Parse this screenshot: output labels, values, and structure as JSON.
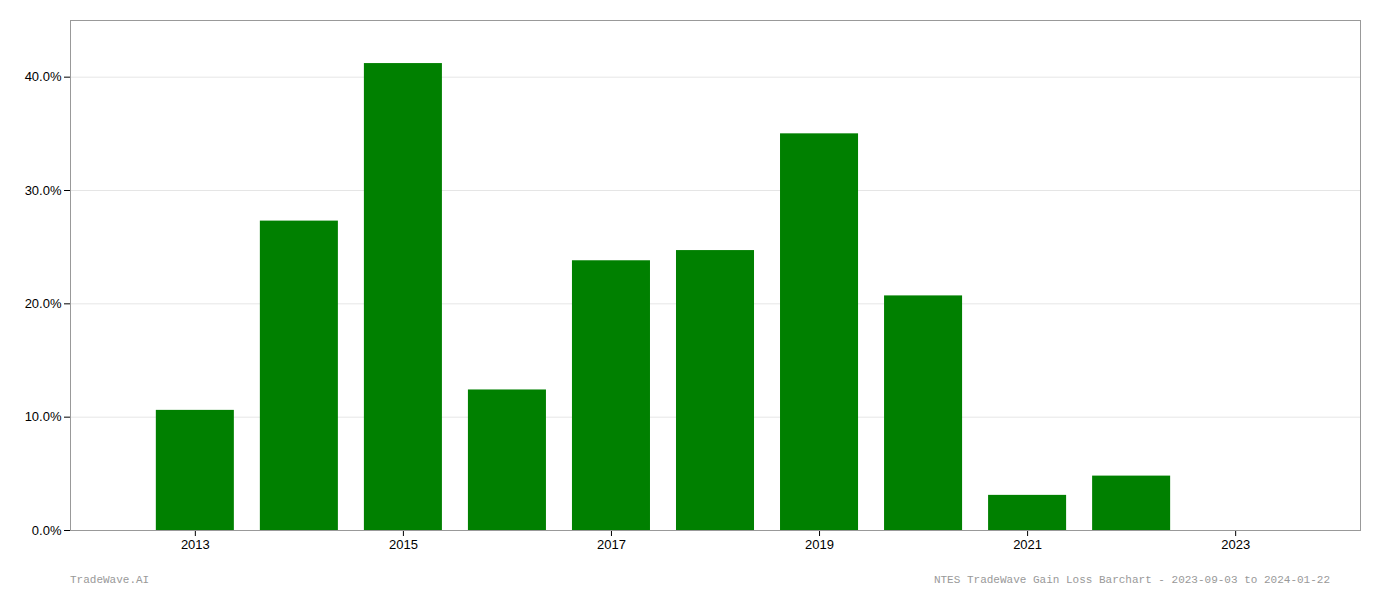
{
  "chart_data": {
    "type": "bar",
    "x": [
      2013,
      2014,
      2015,
      2016,
      2017,
      2018,
      2019,
      2020,
      2021,
      2022
    ],
    "values": [
      0.106,
      0.273,
      0.412,
      0.124,
      0.238,
      0.247,
      0.35,
      0.207,
      0.031,
      0.048
    ],
    "color": "#008000",
    "xlim": [
      2011.8,
      2024.2
    ],
    "xticks": [
      2013,
      2015,
      2017,
      2019,
      2021,
      2023
    ],
    "ylim": [
      0.0,
      0.45
    ],
    "yticks": [
      {
        "value": 0.0,
        "label": "0.0%"
      },
      {
        "value": 0.1,
        "label": "10.0%"
      },
      {
        "value": 0.2,
        "label": "20.0%"
      },
      {
        "value": 0.3,
        "label": "30.0%"
      },
      {
        "value": 0.4,
        "label": "40.0%"
      }
    ],
    "grid": true,
    "annotations": [
      "TradeWave.AI",
      "NTES TradeWave Gain Loss Barchart - 2023-09-03 to 2024-01-22"
    ]
  }
}
